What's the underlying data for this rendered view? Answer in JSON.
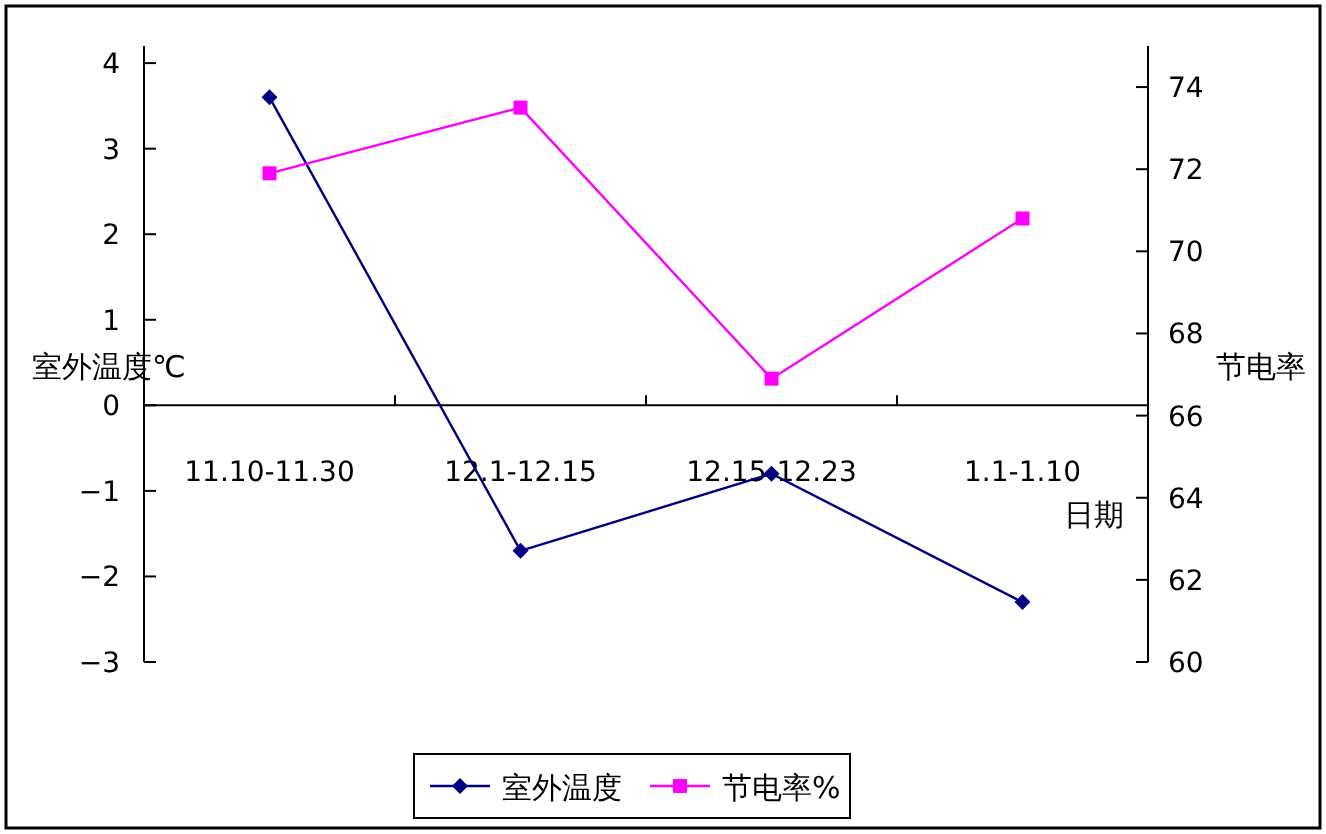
{
  "chart_data": {
    "type": "line",
    "categories": [
      "11.10-11.30",
      "12.1-12.15",
      "12.15-12.23",
      "1.1-1.10"
    ],
    "xlabel": "日期",
    "ylabel": "室外温度℃",
    "y2label": "节电率",
    "series": [
      {
        "name": "室外温度",
        "color": "#000080",
        "marker": "diamond",
        "values": [
          3.6,
          -1.7,
          -0.8,
          -2.3
        ]
      },
      {
        "name": "节电率%",
        "color": "#ff00ff",
        "marker": "square",
        "axis": "y2",
        "values": [
          71.9,
          73.5,
          66.9,
          70.8
        ]
      }
    ],
    "ylim": [
      -3,
      4.2
    ],
    "yticks": [
      -3,
      -2,
      -1,
      0,
      1,
      2,
      3,
      4
    ],
    "y2lim": [
      60,
      75
    ],
    "y2ticks": [
      60,
      62,
      64,
      66,
      68,
      70,
      72,
      74
    ],
    "legend": "bottom",
    "grid": false
  }
}
